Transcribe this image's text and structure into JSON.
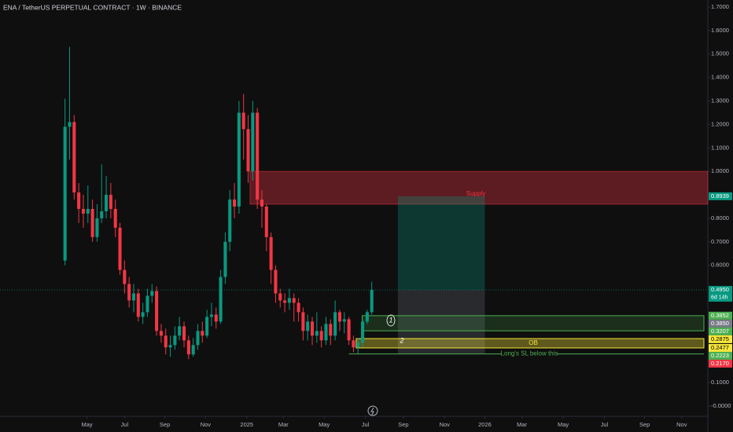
{
  "chart_data": {
    "type": "candlestick",
    "title": "ENA / TetherUS PERPETUAL CONTRACT · 1W · BINANCE",
    "up_color": "#089981",
    "down_color": "#f23645",
    "xlim": [
      -14.2,
      140.4
    ],
    "xticks": [
      {
        "value": 4.8,
        "label": "May"
      },
      {
        "value": 13.0,
        "label": "Jul"
      },
      {
        "value": 21.8,
        "label": "Sep"
      },
      {
        "value": 30.7,
        "label": "Nov"
      },
      {
        "value": 39.7,
        "label": "2025"
      },
      {
        "value": 47.7,
        "label": "Mar"
      },
      {
        "value": 56.6,
        "label": "May"
      },
      {
        "value": 65.6,
        "label": "Jul"
      },
      {
        "value": 73.9,
        "label": "Sep"
      },
      {
        "value": 82.9,
        "label": "Nov"
      },
      {
        "value": 91.7,
        "label": "2026"
      },
      {
        "value": 99.8,
        "label": "Mar"
      },
      {
        "value": 108.8,
        "label": "May"
      },
      {
        "value": 117.8,
        "label": "Jul"
      },
      {
        "value": 126.6,
        "label": "Sep"
      },
      {
        "value": 134.7,
        "label": "Nov"
      }
    ],
    "ylim": [
      -0.0435,
      1.73
    ],
    "yticks": [
      {
        "value": 0,
        "label": "-0.0000"
      },
      {
        "value": 0.1,
        "label": "0.1000"
      },
      {
        "value": 0.6,
        "label": "0.6000"
      },
      {
        "value": 0.7,
        "label": "0.7000"
      },
      {
        "value": 0.8,
        "label": "0.8000"
      },
      {
        "value": 1.0,
        "label": "1.0000"
      },
      {
        "value": 1.1,
        "label": "1.1000"
      },
      {
        "value": 1.2,
        "label": "1.2000"
      },
      {
        "value": 1.3,
        "label": "1.3000"
      },
      {
        "value": 1.4,
        "label": "1.4000"
      },
      {
        "value": 1.5,
        "label": "1.5000"
      },
      {
        "value": 1.6,
        "label": "1.6000"
      },
      {
        "value": 1.7,
        "label": "1.7000"
      }
    ],
    "candles": {
      "open": [
        0.62,
        1.19,
        1.21,
        0.91,
        0.84,
        0.82,
        0.84,
        0.72,
        0.8,
        0.83,
        0.9,
        0.84,
        0.76,
        0.58,
        0.52,
        0.45,
        0.48,
        0.38,
        0.4,
        0.47,
        0.49,
        0.32,
        0.3,
        0.25,
        0.26,
        0.3,
        0.34,
        0.28,
        0.22,
        0.26,
        0.32,
        0.3,
        0.38,
        0.39,
        0.36,
        0.55,
        0.7,
        0.88,
        0.85,
        1.25,
        1.18,
        1.0,
        1.25,
        0.88,
        0.85,
        0.72,
        0.58,
        0.48,
        0.45,
        0.44,
        0.46,
        0.44,
        0.4,
        0.32,
        0.36,
        0.3,
        0.32,
        0.28,
        0.35,
        0.3,
        0.4,
        0.36,
        0.37,
        0.28,
        0.25,
        0.27,
        0.36,
        0.4
      ],
      "high": [
        1.31,
        1.53,
        1.24,
        0.95,
        0.9,
        0.94,
        0.88,
        0.86,
        1.03,
        0.98,
        0.95,
        0.88,
        0.78,
        0.62,
        0.55,
        0.52,
        0.5,
        0.44,
        0.5,
        0.52,
        0.51,
        0.35,
        0.33,
        0.3,
        0.34,
        0.38,
        0.36,
        0.3,
        0.29,
        0.35,
        0.36,
        0.41,
        0.44,
        0.42,
        0.58,
        0.74,
        0.92,
        0.95,
        1.3,
        1.33,
        1.24,
        1.3,
        1.27,
        0.92,
        0.86,
        0.74,
        0.6,
        0.5,
        0.48,
        0.5,
        0.48,
        0.46,
        0.42,
        0.39,
        0.38,
        0.4,
        0.34,
        0.38,
        0.37,
        0.45,
        0.41,
        0.4,
        0.38,
        0.3,
        0.29,
        0.37,
        0.41,
        0.53
      ],
      "low": [
        0.6,
        1.05,
        0.88,
        0.78,
        0.76,
        0.78,
        0.7,
        0.7,
        0.78,
        0.8,
        0.8,
        0.72,
        0.56,
        0.48,
        0.42,
        0.4,
        0.36,
        0.35,
        0.38,
        0.44,
        0.3,
        0.27,
        0.22,
        0.21,
        0.24,
        0.28,
        0.25,
        0.2,
        0.21,
        0.24,
        0.27,
        0.29,
        0.34,
        0.33,
        0.35,
        0.52,
        0.66,
        0.8,
        0.82,
        1.05,
        0.95,
        0.96,
        0.84,
        0.76,
        0.66,
        0.52,
        0.44,
        0.42,
        0.4,
        0.41,
        0.36,
        0.36,
        0.28,
        0.28,
        0.26,
        0.27,
        0.25,
        0.26,
        0.26,
        0.28,
        0.32,
        0.31,
        0.26,
        0.23,
        0.22,
        0.25,
        0.35,
        0.39
      ],
      "close": [
        1.19,
        1.21,
        0.91,
        0.84,
        0.82,
        0.84,
        0.72,
        0.8,
        0.83,
        0.9,
        0.84,
        0.76,
        0.58,
        0.52,
        0.45,
        0.48,
        0.38,
        0.4,
        0.47,
        0.49,
        0.32,
        0.3,
        0.25,
        0.26,
        0.3,
        0.34,
        0.28,
        0.22,
        0.26,
        0.32,
        0.3,
        0.38,
        0.39,
        0.36,
        0.55,
        0.7,
        0.88,
        0.85,
        1.25,
        1.18,
        1.0,
        1.25,
        0.88,
        0.85,
        0.72,
        0.58,
        0.48,
        0.45,
        0.44,
        0.46,
        0.44,
        0.4,
        0.32,
        0.36,
        0.3,
        0.32,
        0.28,
        0.35,
        0.3,
        0.4,
        0.36,
        0.37,
        0.28,
        0.25,
        0.27,
        0.36,
        0.4,
        0.495
      ]
    },
    "last_price": {
      "value": 0.495,
      "label": "0.4950",
      "countdown": "6d 14h"
    },
    "supply_zone": {
      "label": "Supply",
      "low": 0.86,
      "high": 1.0
    },
    "demand_zone": {
      "low": 0.3207,
      "high": 0.3852
    },
    "ob_zone": {
      "label": "OB",
      "low": 0.2477,
      "high": 0.2875
    },
    "stop_line": {
      "label": "Long's SL below this",
      "value": 0.2223
    },
    "position": {
      "entry": 0.495,
      "target": 0.8939,
      "stop": 0.2223
    },
    "annotations": [
      "1",
      "2"
    ],
    "price_labels": [
      {
        "value": 0.8939,
        "label": "0.8939",
        "color": "#089981"
      },
      {
        "value": 0.3852,
        "label": "0.3852",
        "color": "#4caf50"
      },
      {
        "value": 0.385,
        "label": "0.3850",
        "color": "#787b86"
      },
      {
        "value": 0.3207,
        "label": "0.3207",
        "color": "#4caf50"
      },
      {
        "value": 0.2875,
        "label": "0.2875",
        "color": "#f5e63a"
      },
      {
        "value": 0.2477,
        "label": "0.2477",
        "color": "#f5e63a"
      },
      {
        "value": 0.2223,
        "label": "0.2223",
        "color": "#4caf50"
      },
      {
        "value": 0.217,
        "label": "0.2170",
        "color": "#f23645"
      }
    ]
  }
}
